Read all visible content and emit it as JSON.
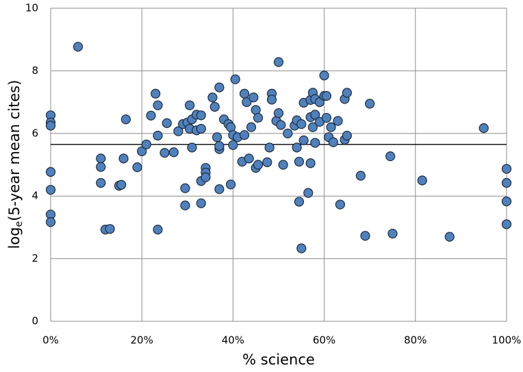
{
  "chart_data": {
    "type": "scatter",
    "x_label": "% science",
    "y_label": [
      "log",
      "e",
      "(5-year mean cites)"
    ],
    "color": "#4f81bd",
    "x": [
      0,
      0,
      0,
      0,
      0,
      0,
      0,
      6,
      11,
      11,
      11,
      12,
      13,
      15,
      15.5,
      16,
      16.5,
      19,
      20,
      21,
      22,
      23,
      23.5,
      23.5,
      23.5,
      25,
      25.5,
      27,
      28,
      29,
      29.5,
      29.5,
      30,
      30.5,
      30.5,
      31,
      31,
      32,
      32,
      33,
      33,
      33,
      33,
      34,
      34,
      34,
      35.5,
      36,
      36.5,
      37,
      37,
      37,
      37,
      38,
      39,
      39.5,
      39.5,
      40,
      40,
      40.5,
      41,
      42,
      42.5,
      42.5,
      43,
      43.5,
      44,
      44.5,
      45,
      45,
      45.5,
      45.5,
      47.5,
      48,
      48.5,
      48.5,
      49.5,
      50,
      50,
      50.5,
      51,
      52,
      53.5,
      54,
      54,
      54.5,
      54.5,
      55,
      55,
      55.5,
      55.5,
      56.5,
      57,
      57,
      57,
      57.5,
      57.5,
      58,
      58,
      58,
      59,
      59,
      60,
      60,
      60.5,
      60.5,
      61,
      61.5,
      62,
      63,
      63.5,
      64.5,
      64.5,
      65,
      65,
      68,
      69,
      70,
      74.5,
      75,
      81.5,
      87.5,
      95,
      100,
      100,
      100,
      100
    ],
    "values": [
      6.58,
      6.35,
      6.25,
      4.77,
      4.2,
      3.41,
      3.17,
      8.77,
      5.2,
      4.93,
      4.42,
      2.93,
      2.95,
      4.33,
      4.36,
      5.2,
      6.45,
      4.92,
      5.43,
      5.65,
      6.57,
      7.27,
      6.9,
      5.93,
      2.93,
      5.38,
      6.33,
      5.4,
      6.07,
      6.3,
      3.7,
      4.25,
      6.35,
      6.15,
      6.9,
      5.55,
      6.45,
      6.6,
      6.1,
      4.48,
      3.77,
      6.58,
      6.15,
      4.9,
      4.75,
      4.6,
      7.15,
      6.85,
      5.88,
      7.47,
      5.5,
      5.6,
      4.22,
      6.45,
      6.3,
      6.2,
      4.37,
      5.63,
      5.95,
      7.73,
      5.88,
      5.1,
      7.27,
      5.95,
      7.0,
      5.2,
      6.2,
      7.15,
      6.75,
      4.9,
      6.5,
      5.0,
      5.08,
      5.55,
      7.27,
      7.08,
      6.4,
      8.28,
      6.65,
      6.27,
      5.0,
      6.0,
      6.25,
      5.55,
      6.42,
      3.82,
      5.1,
      6.3,
      2.33,
      5.78,
      6.98,
      4.1,
      5.05,
      7.07,
      6.52,
      6.2,
      7.3,
      6.6,
      7.1,
      5.7,
      6.37,
      7.0,
      7.85,
      7.2,
      7.2,
      6.5,
      5.88,
      6.2,
      5.72,
      6.4,
      3.73,
      7.1,
      5.8,
      7.3,
      5.93,
      4.65,
      2.73,
      6.95,
      5.27,
      2.8,
      4.5,
      2.7,
      6.17,
      4.87,
      4.42,
      3.83,
      3.1
    ],
    "hline": 5.65,
    "xlim": [
      0,
      100
    ],
    "xticks": [
      {
        "value": 0,
        "label": "0%"
      },
      {
        "value": 20,
        "label": "20%"
      },
      {
        "value": 40,
        "label": "40%"
      },
      {
        "value": 60,
        "label": "60%"
      },
      {
        "value": 80,
        "label": "80%"
      },
      {
        "value": 100,
        "label": "100%"
      }
    ],
    "ylim": [
      0,
      10
    ],
    "yticks": [
      0,
      2,
      4,
      6,
      8,
      10
    ],
    "grid": true
  }
}
